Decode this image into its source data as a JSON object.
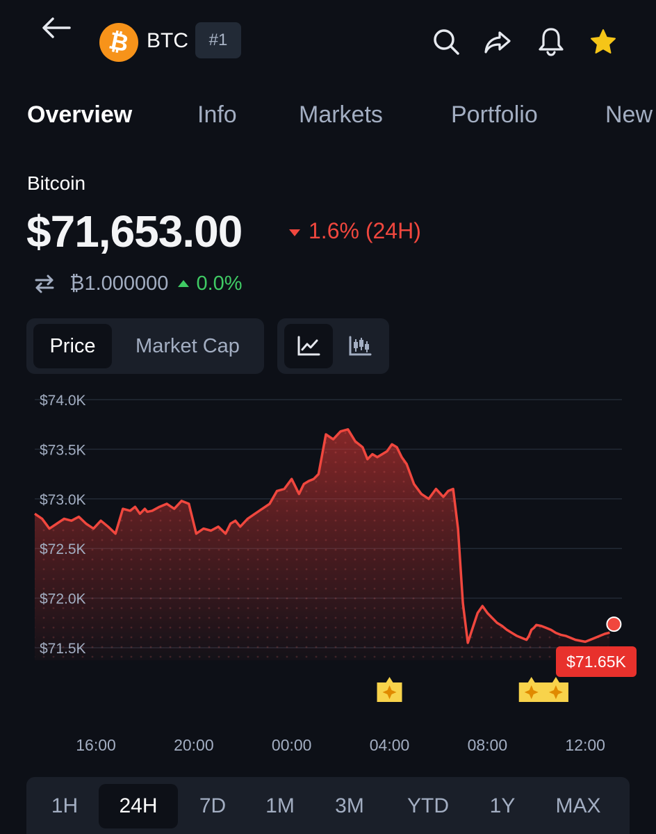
{
  "header": {
    "back_icon": "arrow-left-icon",
    "coin_icon": "bitcoin-logo",
    "ticker": "BTC",
    "rank": "#1",
    "actions": [
      "search-icon",
      "share-icon",
      "bell-icon",
      "star-icon"
    ]
  },
  "tabs": [
    "Overview",
    "Info",
    "Markets",
    "Portfolio",
    "New"
  ],
  "active_tab": "Overview",
  "coin": {
    "name": "Bitcoin",
    "price": "$71,653.00",
    "change": "1.6% (24H)",
    "btc_value": "₿1.000000",
    "btc_change": "0.0%"
  },
  "chart_toggle": {
    "metrics": [
      "Price",
      "Market Cap"
    ],
    "active_metric": "Price",
    "chart_types": [
      "line-chart-icon",
      "candlestick-icon"
    ],
    "active_chart_type": "line-chart-icon"
  },
  "colors": {
    "negative": "#f0473e",
    "positive": "#3fcb64",
    "background": "#0d1017"
  },
  "chart_data": {
    "type": "area",
    "y_tick_labels": [
      "$74.0K",
      "$73.5K",
      "$73.0K",
      "$72.5K",
      "$72.0K",
      "$71.5K"
    ],
    "y_ticks": [
      74000,
      73500,
      73000,
      72500,
      72000,
      71500
    ],
    "ylim": [
      71450,
      74000
    ],
    "x_tick_labels": [
      "16:00",
      "20:00",
      "00:00",
      "04:00",
      "08:00",
      "12:00"
    ],
    "x_ticks": [
      16,
      20,
      24,
      28,
      32,
      36
    ],
    "xlim": [
      13.5,
      37.5
    ],
    "grid": true,
    "current_label": "$71.65K",
    "series": [
      {
        "x": [
          13.5,
          13.8,
          14.1,
          14.4,
          14.7,
          15.0,
          15.3,
          15.6,
          15.9,
          16.2,
          16.5,
          16.8,
          17.1,
          17.4,
          17.6,
          17.8,
          18.0,
          18.1,
          18.3,
          18.6,
          18.9,
          19.2,
          19.5,
          19.8,
          20.1,
          20.4,
          20.7,
          21.0,
          21.3,
          21.5,
          21.7,
          21.9,
          22.2,
          22.5,
          22.8,
          23.1,
          23.4,
          23.7,
          24.0,
          24.3,
          24.5,
          24.7,
          24.9,
          25.1,
          25.4,
          25.7,
          26.0,
          26.3,
          26.6,
          26.9,
          27.1,
          27.3,
          27.5,
          27.7,
          27.9,
          28.1,
          28.3,
          28.5,
          28.7,
          29.0,
          29.3,
          29.6,
          29.9,
          30.2,
          30.4,
          30.6,
          30.8,
          31.0,
          31.2,
          31.4,
          31.6,
          31.8,
          32.0,
          32.2,
          32.4,
          32.6,
          32.8,
          33.0,
          33.2,
          33.4,
          33.6,
          33.7,
          33.8,
          33.9,
          34.0,
          34.2,
          34.4,
          34.6,
          34.8,
          35.0,
          35.2,
          35.4,
          35.6,
          35.8,
          36.0,
          36.2,
          36.4,
          36.6,
          36.8,
          37.0
        ],
        "values": [
          72850,
          72800,
          72700,
          72750,
          72800,
          72780,
          72820,
          72750,
          72700,
          72780,
          72720,
          72650,
          72900,
          72880,
          72920,
          72850,
          72900,
          72870,
          72880,
          72920,
          72950,
          72900,
          72980,
          72950,
          72650,
          72700,
          72680,
          72720,
          72650,
          72750,
          72780,
          72720,
          72800,
          72850,
          72900,
          72950,
          73080,
          73100,
          73200,
          73050,
          73150,
          73180,
          73200,
          73250,
          73650,
          73600,
          73680,
          73700,
          73580,
          73520,
          73400,
          73450,
          73420,
          73450,
          73480,
          73550,
          73520,
          73420,
          73350,
          73150,
          73050,
          73000,
          73100,
          73020,
          73080,
          73100,
          72700,
          71950,
          71550,
          71700,
          71850,
          71920,
          71850,
          71800,
          71750,
          71720,
          71680,
          71650,
          71620,
          71600,
          71580,
          71620,
          71680,
          71700,
          71730,
          71720,
          71700,
          71680,
          71650,
          71630,
          71620,
          71600,
          71580,
          71570,
          71560,
          71580,
          71600,
          71620,
          71640,
          71653
        ]
      }
    ],
    "event_markers_x": [
      28.0,
      33.8,
      34.8
    ]
  },
  "timeframes": [
    "1H",
    "24H",
    "7D",
    "1M",
    "3M",
    "YTD",
    "1Y",
    "MAX"
  ],
  "active_timeframe": "24H"
}
